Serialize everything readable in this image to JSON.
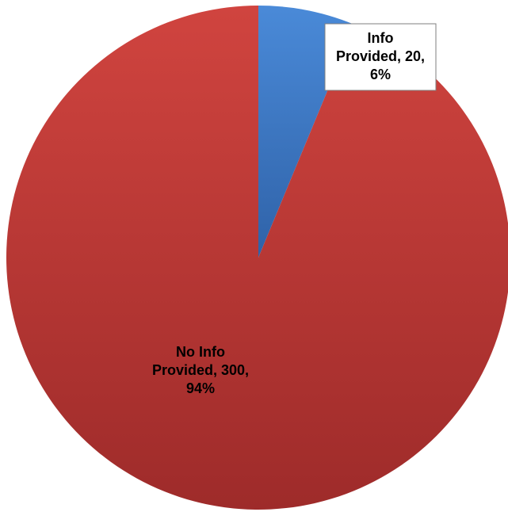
{
  "chart_data": {
    "type": "pie",
    "slices": [
      {
        "name": "Info Provided",
        "value": 20,
        "percent": "6%",
        "label_lines": [
          "Info",
          "Provided, 20,",
          "6%"
        ],
        "color_light": "#4a8ad8",
        "color_dark": "#2f62a8"
      },
      {
        "name": "No Info Provided",
        "value": 300,
        "percent": "94%",
        "label_lines": [
          "No Info",
          "Provided, 300,",
          "94%"
        ],
        "color_light": "#d0443f",
        "color_dark": "#9e2b2a"
      }
    ],
    "start_angle_deg": 0,
    "direction": "clockwise",
    "legend": "none"
  }
}
